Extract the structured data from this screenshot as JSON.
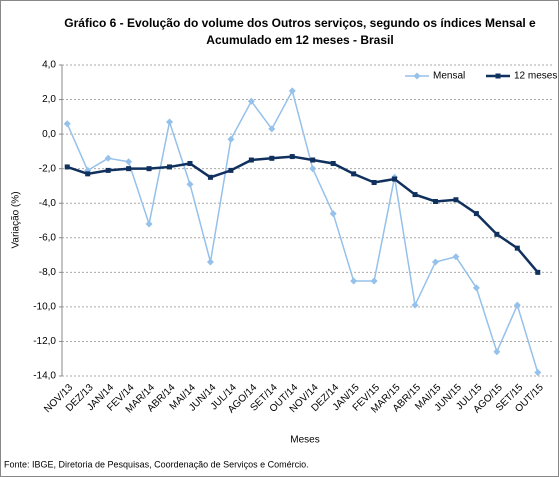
{
  "chart_data": {
    "type": "line",
    "title": "Gráfico 6 - Evolução do volume dos Outros serviços, segundo os índices Mensal e",
    "subtitle": "Acumulado em 12 meses - Brasil",
    "y_label": "Variação (%)",
    "x_label": "Meses",
    "source": "Fonte: IBGE, Diretoria de Pesquisas, Coordenação de Serviços e Comércio.",
    "categories": [
      "NOV/13",
      "DEZ/13",
      "JAN/14",
      "FEV/14",
      "MAR/14",
      "ABR/14",
      "MAI/14",
      "JUN/14",
      "JUL/14",
      "AGO/14",
      "SET/14",
      "OUT/14",
      "NOV/14",
      "DEZ/14",
      "JAN/15",
      "FEV/15",
      "MAR/15",
      "ABR/15",
      "MAI/15",
      "JUN/15",
      "JUL/15",
      "AGO/15",
      "SET/15",
      "OUT/15"
    ],
    "series": [
      {
        "name": "Mensal",
        "color": "#95c1ea",
        "marker": "diamond",
        "values": [
          0.6,
          -2.1,
          -1.4,
          -1.6,
          -5.2,
          0.7,
          -2.9,
          -7.4,
          -0.3,
          1.9,
          0.3,
          2.5,
          -2.0,
          -4.6,
          -8.5,
          -8.5,
          -2.5,
          -9.9,
          -7.4,
          -7.1,
          -8.9,
          -12.6,
          -9.9,
          -13.8
        ]
      },
      {
        "name": "12 meses",
        "color": "#10305e",
        "marker": "square",
        "values": [
          -1.9,
          -2.3,
          -2.1,
          -2.0,
          -2.0,
          -1.9,
          -1.7,
          -2.5,
          -2.1,
          -1.5,
          -1.4,
          -1.3,
          -1.5,
          -1.7,
          -2.3,
          -2.8,
          -2.6,
          -3.5,
          -3.9,
          -3.8,
          -4.6,
          -5.8,
          -6.6,
          -8.0
        ]
      }
    ],
    "ylim": [
      -14,
      4
    ],
    "yticks": [
      {
        "value": 4,
        "label": "4,0"
      },
      {
        "value": 2,
        "label": "2,0"
      },
      {
        "value": 0,
        "label": "0,0"
      },
      {
        "value": -2,
        "label": "-2,0"
      },
      {
        "value": -4,
        "label": "-4,0"
      },
      {
        "value": -6,
        "label": "-6,0"
      },
      {
        "value": -8,
        "label": "-8,0"
      },
      {
        "value": -10,
        "label": "-10,0"
      },
      {
        "value": -12,
        "label": "-12,0"
      },
      {
        "value": -14,
        "label": "-14,0"
      }
    ],
    "grid": true,
    "legend": "top-right"
  }
}
